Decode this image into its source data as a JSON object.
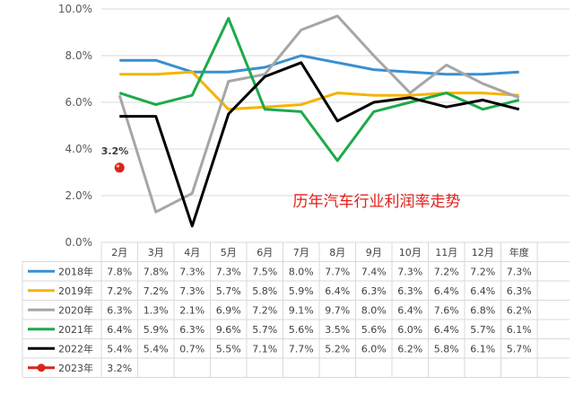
{
  "chart_data": {
    "type": "line",
    "title": "历年汽车行业利润率走势",
    "categories": [
      "2月",
      "3月",
      "4月",
      "5月",
      "6月",
      "7月",
      "8月",
      "9月",
      "10月",
      "11月",
      "12月",
      "年度"
    ],
    "ylim": [
      0,
      10
    ],
    "yticks": [
      "0.0%",
      "2.0%",
      "4.0%",
      "6.0%",
      "8.0%",
      "10.0%"
    ],
    "grid": true,
    "series": [
      {
        "name": "2018年",
        "color": "#3a8fd1",
        "values": [
          7.8,
          7.8,
          7.3,
          7.3,
          7.5,
          8.0,
          7.7,
          7.4,
          7.3,
          7.2,
          7.2,
          7.3
        ],
        "labels": [
          "7.8%",
          "7.8%",
          "7.3%",
          "7.3%",
          "7.5%",
          "8.0%",
          "7.7%",
          "7.4%",
          "7.3%",
          "7.2%",
          "7.2%",
          "7.3%"
        ]
      },
      {
        "name": "2019年",
        "color": "#f5b400",
        "values": [
          7.2,
          7.2,
          7.3,
          5.7,
          5.8,
          5.9,
          6.4,
          6.3,
          6.3,
          6.4,
          6.4,
          6.3
        ],
        "labels": [
          "7.2%",
          "7.2%",
          "7.3%",
          "5.7%",
          "5.8%",
          "5.9%",
          "6.4%",
          "6.3%",
          "6.3%",
          "6.4%",
          "6.4%",
          "6.3%"
        ]
      },
      {
        "name": "2020年",
        "color": "#a6a6a6",
        "values": [
          6.3,
          1.3,
          2.1,
          6.9,
          7.2,
          9.1,
          9.7,
          8.0,
          6.4,
          7.6,
          6.8,
          6.2
        ],
        "labels": [
          "6.3%",
          "1.3%",
          "2.1%",
          "6.9%",
          "7.2%",
          "9.1%",
          "9.7%",
          "8.0%",
          "6.4%",
          "7.6%",
          "6.8%",
          "6.2%"
        ]
      },
      {
        "name": "2021年",
        "color": "#1daa4a",
        "values": [
          6.4,
          5.9,
          6.3,
          9.6,
          5.7,
          5.6,
          3.5,
          5.6,
          6.0,
          6.4,
          5.7,
          6.1
        ],
        "labels": [
          "6.4%",
          "5.9%",
          "6.3%",
          "9.6%",
          "5.7%",
          "5.6%",
          "3.5%",
          "5.6%",
          "6.0%",
          "6.4%",
          "5.7%",
          "6.1%"
        ]
      },
      {
        "name": "2022年",
        "color": "#000000",
        "values": [
          5.4,
          5.4,
          0.7,
          5.5,
          7.1,
          7.7,
          5.2,
          6.0,
          6.2,
          5.8,
          6.1,
          5.7
        ],
        "labels": [
          "5.4%",
          "5.4%",
          "0.7%",
          "5.5%",
          "7.1%",
          "7.7%",
          "5.2%",
          "6.0%",
          "6.2%",
          "5.8%",
          "6.1%",
          "5.7%"
        ]
      },
      {
        "name": "2023年",
        "color": "#d9261c",
        "marker": true,
        "values": [
          3.2,
          null,
          null,
          null,
          null,
          null,
          null,
          null,
          null,
          null,
          null,
          null
        ],
        "labels": [
          "3.2%",
          "",
          "",
          "",
          "",
          "",
          "",
          "",
          "",
          "",
          "",
          ""
        ]
      }
    ],
    "annotation": "3.2%"
  }
}
